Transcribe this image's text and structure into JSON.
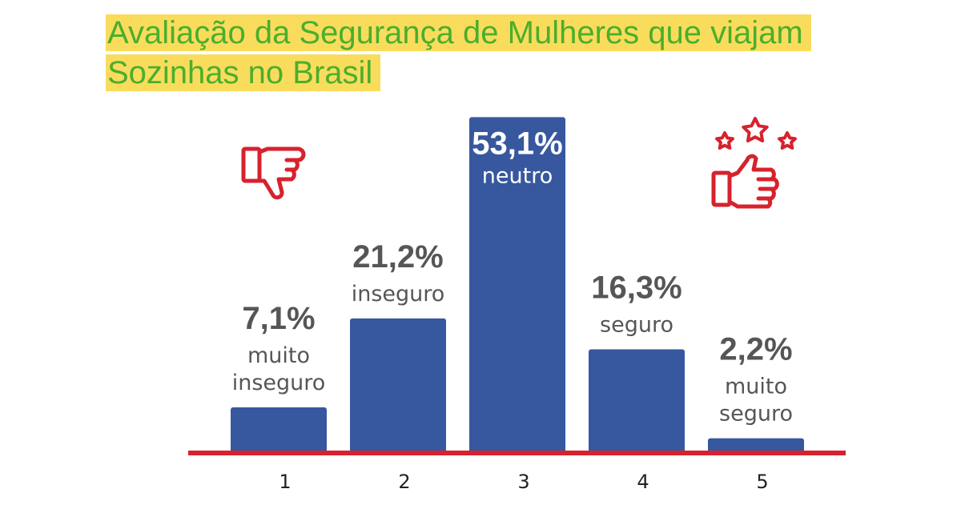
{
  "title": [
    "Avaliação da Segurança de Mulheres que viajam",
    "Sozinhas no Brasil"
  ],
  "colors": {
    "title_text": "#4bae2d",
    "title_highlight": "#f9dc5c",
    "bar": "#37589f",
    "baseline": "#d7222e",
    "icon": "#d7222e",
    "value_text": "#565656",
    "value_text_inside": "#ffffff"
  },
  "icons": {
    "left": "thumbs-down-icon",
    "right": "thumbs-up-stars-icon"
  },
  "chart_data": {
    "type": "bar",
    "categories": [
      "1",
      "2",
      "3",
      "4",
      "5"
    ],
    "values": [
      7.1,
      21.2,
      53.1,
      16.3,
      2.2
    ],
    "value_labels": [
      "7,1%",
      "21,2%",
      "53,1%",
      "16,3%",
      "2,2%"
    ],
    "category_descriptions": [
      [
        "muito",
        "inseguro"
      ],
      [
        "inseguro"
      ],
      [
        "neutro"
      ],
      [
        "seguro"
      ],
      [
        "muito",
        "seguro"
      ]
    ],
    "unit": "%",
    "ylim": [
      0,
      54
    ],
    "grid": false,
    "legend": "none"
  }
}
